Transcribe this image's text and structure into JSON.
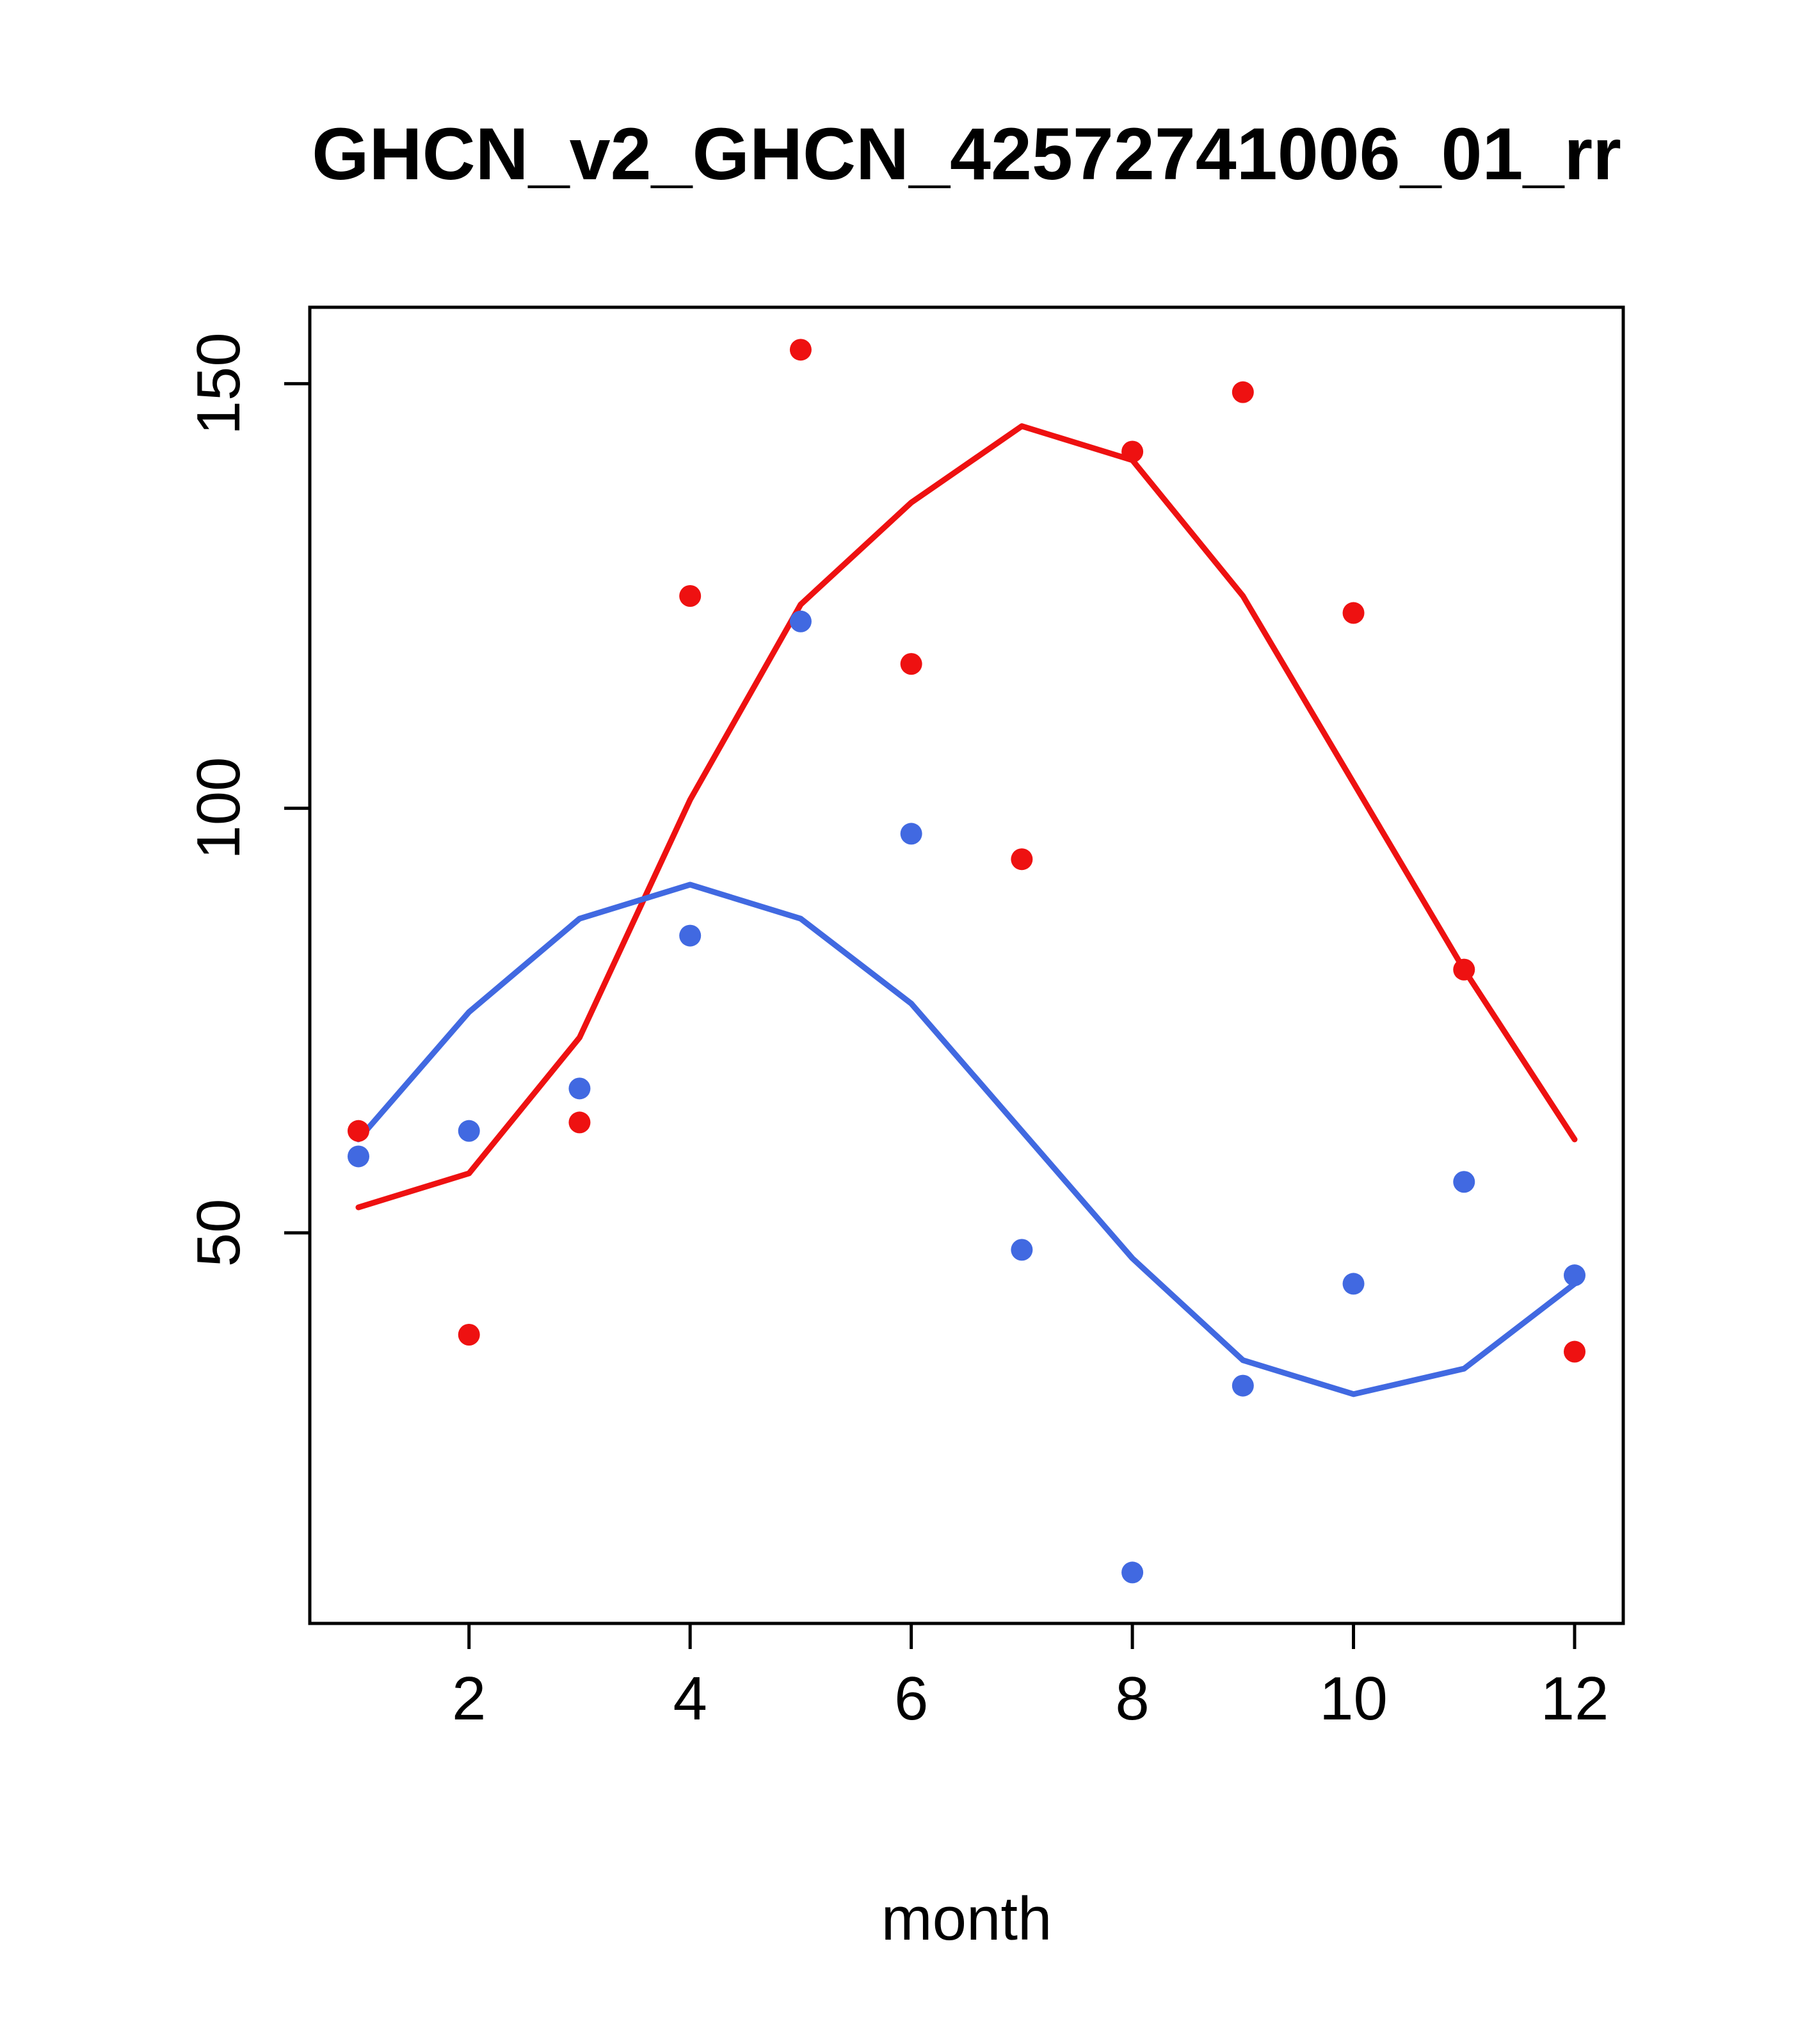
{
  "title": "GHCN_v2_GHCN_42572741006_01_rr",
  "chart_data": {
    "type": "scatter",
    "title": "GHCN_v2_GHCN_42572741006_01_rr",
    "xlabel": "month",
    "ylabel": "",
    "x": [
      1,
      2,
      3,
      4,
      5,
      6,
      7,
      8,
      9,
      10,
      11,
      12
    ],
    "x_ticks": [
      2,
      4,
      6,
      8,
      10,
      12
    ],
    "y_ticks": [
      50,
      100,
      150
    ],
    "xlim": [
      0.56,
      12.44
    ],
    "ylim": [
      4,
      159
    ],
    "grid": false,
    "legend": "none",
    "frame_box": true,
    "series": [
      {
        "name": "red-points",
        "type": "scatter",
        "color": "#ee1111",
        "values": [
          62,
          38,
          63,
          125,
          154,
          117,
          94,
          142,
          149,
          123,
          81,
          36
        ]
      },
      {
        "name": "blue-points",
        "type": "scatter",
        "color": "#4169e1",
        "values": [
          59,
          62,
          67,
          85,
          122,
          97,
          48,
          10,
          32,
          44,
          56,
          45
        ]
      },
      {
        "name": "red-smooth-line",
        "type": "line",
        "color": "#ee1111",
        "values": [
          53,
          57,
          73,
          101,
          124,
          136,
          145,
          141,
          125,
          103,
          81,
          61
        ]
      },
      {
        "name": "blue-smooth-line",
        "type": "line",
        "color": "#4169e1",
        "values": [
          61,
          76,
          87,
          91,
          87,
          77,
          62,
          47,
          35,
          31,
          34,
          44
        ]
      }
    ]
  },
  "colors": {
    "red_series": "#ee1111",
    "blue_series": "#4169e1",
    "axis": "#000000",
    "background": "#ffffff"
  }
}
